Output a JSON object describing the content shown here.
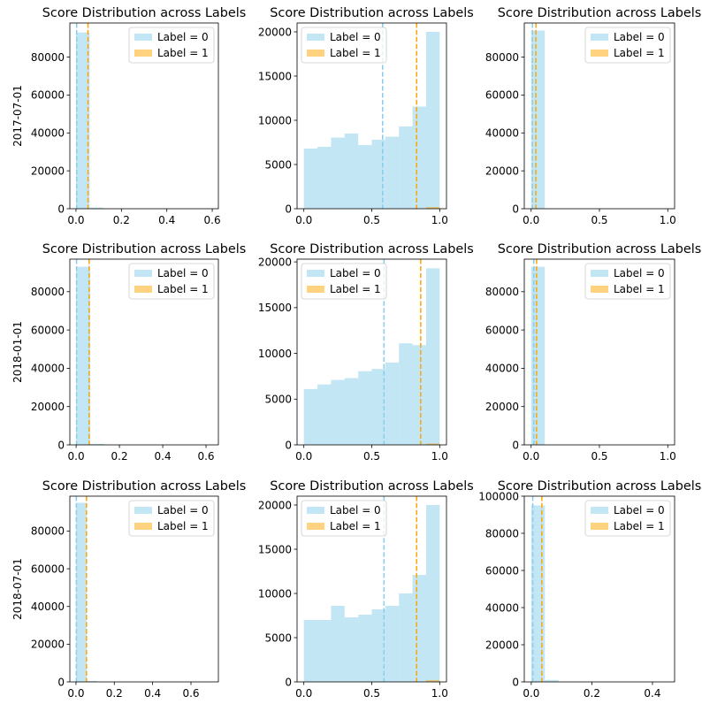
{
  "chart_data": [
    {
      "type": "histogram",
      "row_label": "2017-07-01",
      "title": "Score Distribution across Labels",
      "legend": [
        "Label = 0",
        "Label = 1"
      ],
      "xlim": [
        -0.027,
        0.627
      ],
      "ylim": [
        0,
        98000
      ],
      "xticks": [
        "0.0",
        "0.2",
        "0.4",
        "0.6"
      ],
      "xtick_vals": [
        0,
        0.2,
        0.4,
        0.6
      ],
      "yticks": [
        0,
        20000,
        40000,
        60000,
        80000
      ],
      "bins": [
        0,
        0.06,
        0.12
      ],
      "label0": [
        93000,
        600
      ],
      "label1": [
        0,
        0
      ],
      "mean0": 0.003,
      "mean1": 0.053
    },
    {
      "type": "histogram",
      "title": "Score Distribution across Labels",
      "legend": [
        "Label = 0",
        "Label = 1"
      ],
      "xlim": [
        -0.05,
        1.05
      ],
      "ylim": [
        0,
        21000
      ],
      "xticks": [
        "0.0",
        "0.5",
        "1.0"
      ],
      "xtick_vals": [
        0,
        0.5,
        1
      ],
      "yticks": [
        0,
        5000,
        10000,
        15000,
        20000
      ],
      "bins": [
        0,
        0.1,
        0.2,
        0.3,
        0.4,
        0.5,
        0.6,
        0.7,
        0.8,
        0.9,
        1.0
      ],
      "label0": [
        6800,
        7000,
        8050,
        8500,
        7200,
        7800,
        8150,
        9300,
        11550,
        20000
      ],
      "label1": [
        0,
        0,
        0,
        0,
        0,
        0,
        0,
        0,
        0,
        200
      ],
      "mean0": 0.58,
      "mean1": 0.83
    },
    {
      "type": "histogram",
      "title": "Score Distribution across Labels",
      "legend": [
        "Label = 0",
        "Label = 1"
      ],
      "xlim": [
        -0.05,
        1.05
      ],
      "ylim": [
        0,
        98000
      ],
      "xticks": [
        "0.0",
        "0.5",
        "1.0"
      ],
      "xtick_vals": [
        0,
        0.5,
        1
      ],
      "yticks": [
        0,
        20000,
        40000,
        60000,
        80000
      ],
      "bins": [
        0,
        0.1
      ],
      "label0": [
        94000
      ],
      "label1": [
        0
      ],
      "mean0": 0.01,
      "mean1": 0.035
    },
    {
      "type": "histogram",
      "row_label": "2018-01-01",
      "title": "Score Distribution across Labels",
      "legend": [
        "Label = 0",
        "Label = 1"
      ],
      "xlim": [
        -0.029,
        0.657
      ],
      "ylim": [
        0,
        97000
      ],
      "xticks": [
        "0.0",
        "0.2",
        "0.4",
        "0.6"
      ],
      "xtick_vals": [
        0,
        0.2,
        0.4,
        0.6
      ],
      "yticks": [
        0,
        20000,
        40000,
        60000,
        80000
      ],
      "bins": [
        0,
        0.065,
        0.13
      ],
      "label0": [
        93000,
        500
      ],
      "label1": [
        0,
        0
      ],
      "mean0": 0.002,
      "mean1": 0.06
    },
    {
      "type": "histogram",
      "title": "Score Distribution across Labels",
      "legend": [
        "Label = 0",
        "Label = 1"
      ],
      "xlim": [
        -0.05,
        1.05
      ],
      "ylim": [
        0,
        20300
      ],
      "xticks": [
        "0.0",
        "0.5",
        "1.0"
      ],
      "xtick_vals": [
        0,
        0.5,
        1
      ],
      "yticks": [
        0,
        5000,
        10000,
        15000,
        20000
      ],
      "bins": [
        0,
        0.1,
        0.2,
        0.3,
        0.4,
        0.5,
        0.6,
        0.7,
        0.8,
        0.9,
        1.0
      ],
      "label0": [
        6100,
        6600,
        7100,
        7300,
        8050,
        8300,
        9000,
        11100,
        10900,
        19300
      ],
      "label1": [
        0,
        0,
        0,
        0,
        0,
        0,
        0,
        0,
        0,
        150
      ],
      "mean0": 0.59,
      "mean1": 0.86
    },
    {
      "type": "histogram",
      "title": "Score Distribution across Labels",
      "legend": [
        "Label = 0",
        "Label = 1"
      ],
      "xlim": [
        -0.05,
        1.05
      ],
      "ylim": [
        0,
        97000
      ],
      "xticks": [
        "0.0",
        "0.5",
        "1.0"
      ],
      "xtick_vals": [
        0,
        0.5,
        1
      ],
      "yticks": [
        0,
        20000,
        40000,
        60000,
        80000
      ],
      "bins": [
        0,
        0.1
      ],
      "label0": [
        93000
      ],
      "label1": [
        0
      ],
      "mean0": 0.02,
      "mean1": 0.04
    },
    {
      "type": "histogram",
      "row_label": "2018-07-01",
      "title": "Score Distribution across Labels",
      "legend": [
        "Label = 0",
        "Label = 1"
      ],
      "xlim": [
        -0.032,
        0.743
      ],
      "ylim": [
        0,
        98500
      ],
      "xticks": [
        "0.0",
        "0.2",
        "0.4",
        "0.6"
      ],
      "xtick_vals": [
        0,
        0.2,
        0.4,
        0.6
      ],
      "yticks": [
        0,
        20000,
        40000,
        60000,
        80000
      ],
      "bins": [
        0,
        0.055,
        0.11
      ],
      "label0": [
        95000,
        500
      ],
      "label1": [
        0,
        0
      ],
      "mean0": 0.002,
      "mean1": 0.055
    },
    {
      "type": "histogram",
      "title": "Score Distribution across Labels",
      "legend": [
        "Label = 0",
        "Label = 1"
      ],
      "xlim": [
        -0.05,
        1.05
      ],
      "ylim": [
        0,
        21000
      ],
      "xticks": [
        "0.0",
        "0.5",
        "1.0"
      ],
      "xtick_vals": [
        0,
        0.5,
        1
      ],
      "yticks": [
        0,
        5000,
        10000,
        15000,
        20000
      ],
      "bins": [
        0,
        0.1,
        0.2,
        0.3,
        0.4,
        0.5,
        0.6,
        0.7,
        0.8,
        0.9,
        1.0
      ],
      "label0": [
        7000,
        7000,
        8600,
        7300,
        7600,
        8200,
        8600,
        10000,
        12100,
        20000
      ],
      "label1": [
        0,
        0,
        0,
        0,
        0,
        0,
        0,
        0,
        0,
        200
      ],
      "mean0": 0.59,
      "mean1": 0.83
    },
    {
      "type": "histogram",
      "title": "Score Distribution across Labels",
      "legend": [
        "Label = 0",
        "Label = 1"
      ],
      "xlim": [
        -0.023,
        0.473
      ],
      "ylim": [
        0,
        100000
      ],
      "xticks": [
        "0.0",
        "0.2",
        "0.4"
      ],
      "xtick_vals": [
        0,
        0.2,
        0.4
      ],
      "yticks": [
        0,
        20000,
        40000,
        60000,
        80000,
        100000
      ],
      "bins": [
        0,
        0.045,
        0.09
      ],
      "label0": [
        95000,
        1000
      ],
      "label1": [
        0,
        0
      ],
      "mean0": 0.005,
      "mean1": 0.035
    }
  ],
  "colors": {
    "label0": "#87ceeb",
    "label1": "#ffa500"
  }
}
